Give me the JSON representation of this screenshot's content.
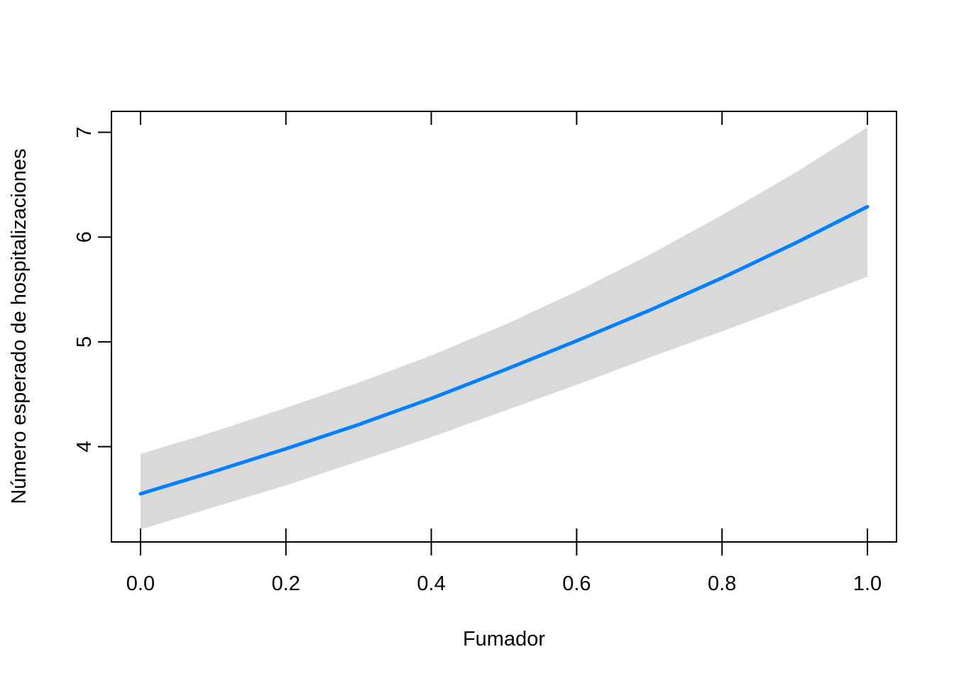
{
  "chart_data": {
    "type": "line",
    "xlabel": "Fumador",
    "ylabel": "Número esperado de hospitalizaciones",
    "xlim": [
      -0.04,
      1.04
    ],
    "ylim": [
      3.09,
      7.2
    ],
    "x_ticks": [
      0.0,
      0.2,
      0.4,
      0.6,
      0.8,
      1.0
    ],
    "x_tick_labels": [
      "0.0",
      "0.2",
      "0.4",
      "0.6",
      "0.8",
      "1.0"
    ],
    "y_ticks": [
      4,
      5,
      6,
      7
    ],
    "y_tick_labels": [
      "4",
      "5",
      "6",
      "7"
    ],
    "grid": false,
    "series": [
      {
        "x": [
          0.0,
          0.1,
          0.2,
          0.3,
          0.4,
          0.5,
          0.6,
          0.7,
          0.8,
          0.9,
          1.0
        ],
        "values": [
          3.55,
          3.76,
          3.98,
          4.21,
          4.46,
          4.73,
          5.01,
          5.3,
          5.61,
          5.94,
          6.29
        ],
        "lower": [
          3.21,
          3.42,
          3.63,
          3.86,
          4.09,
          4.34,
          4.59,
          4.85,
          5.1,
          5.36,
          5.62
        ],
        "upper": [
          3.93,
          4.14,
          4.37,
          4.61,
          4.87,
          5.16,
          5.48,
          5.83,
          6.21,
          6.61,
          7.05
        ],
        "color": "#0080ff",
        "band_color": "#d9d9d9"
      }
    ]
  }
}
